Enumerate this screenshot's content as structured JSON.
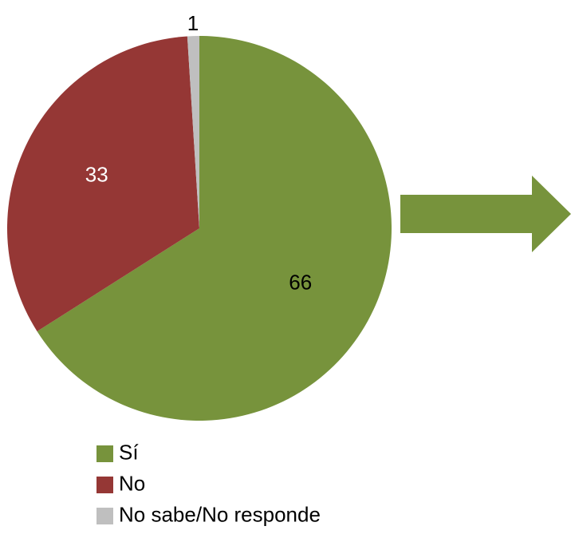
{
  "chart_data": {
    "type": "pie",
    "title": "",
    "categories": [
      "Sí",
      "No",
      "No sabe/No responde"
    ],
    "values": [
      66,
      33,
      1
    ],
    "colors": [
      "#77933C",
      "#953735",
      "#BFBFBF"
    ],
    "label_colors": [
      "#000000",
      "#ffffff",
      "#000000"
    ],
    "legend": {
      "placement": "bottom-left",
      "entries": [
        "Sí",
        "No",
        "No sabe/No responde"
      ]
    },
    "start_angle_deg": 0,
    "direction": "clockwise"
  },
  "decorations": {
    "arrow_color": "#77933C",
    "arrow_icon": "right-arrow-icon"
  }
}
